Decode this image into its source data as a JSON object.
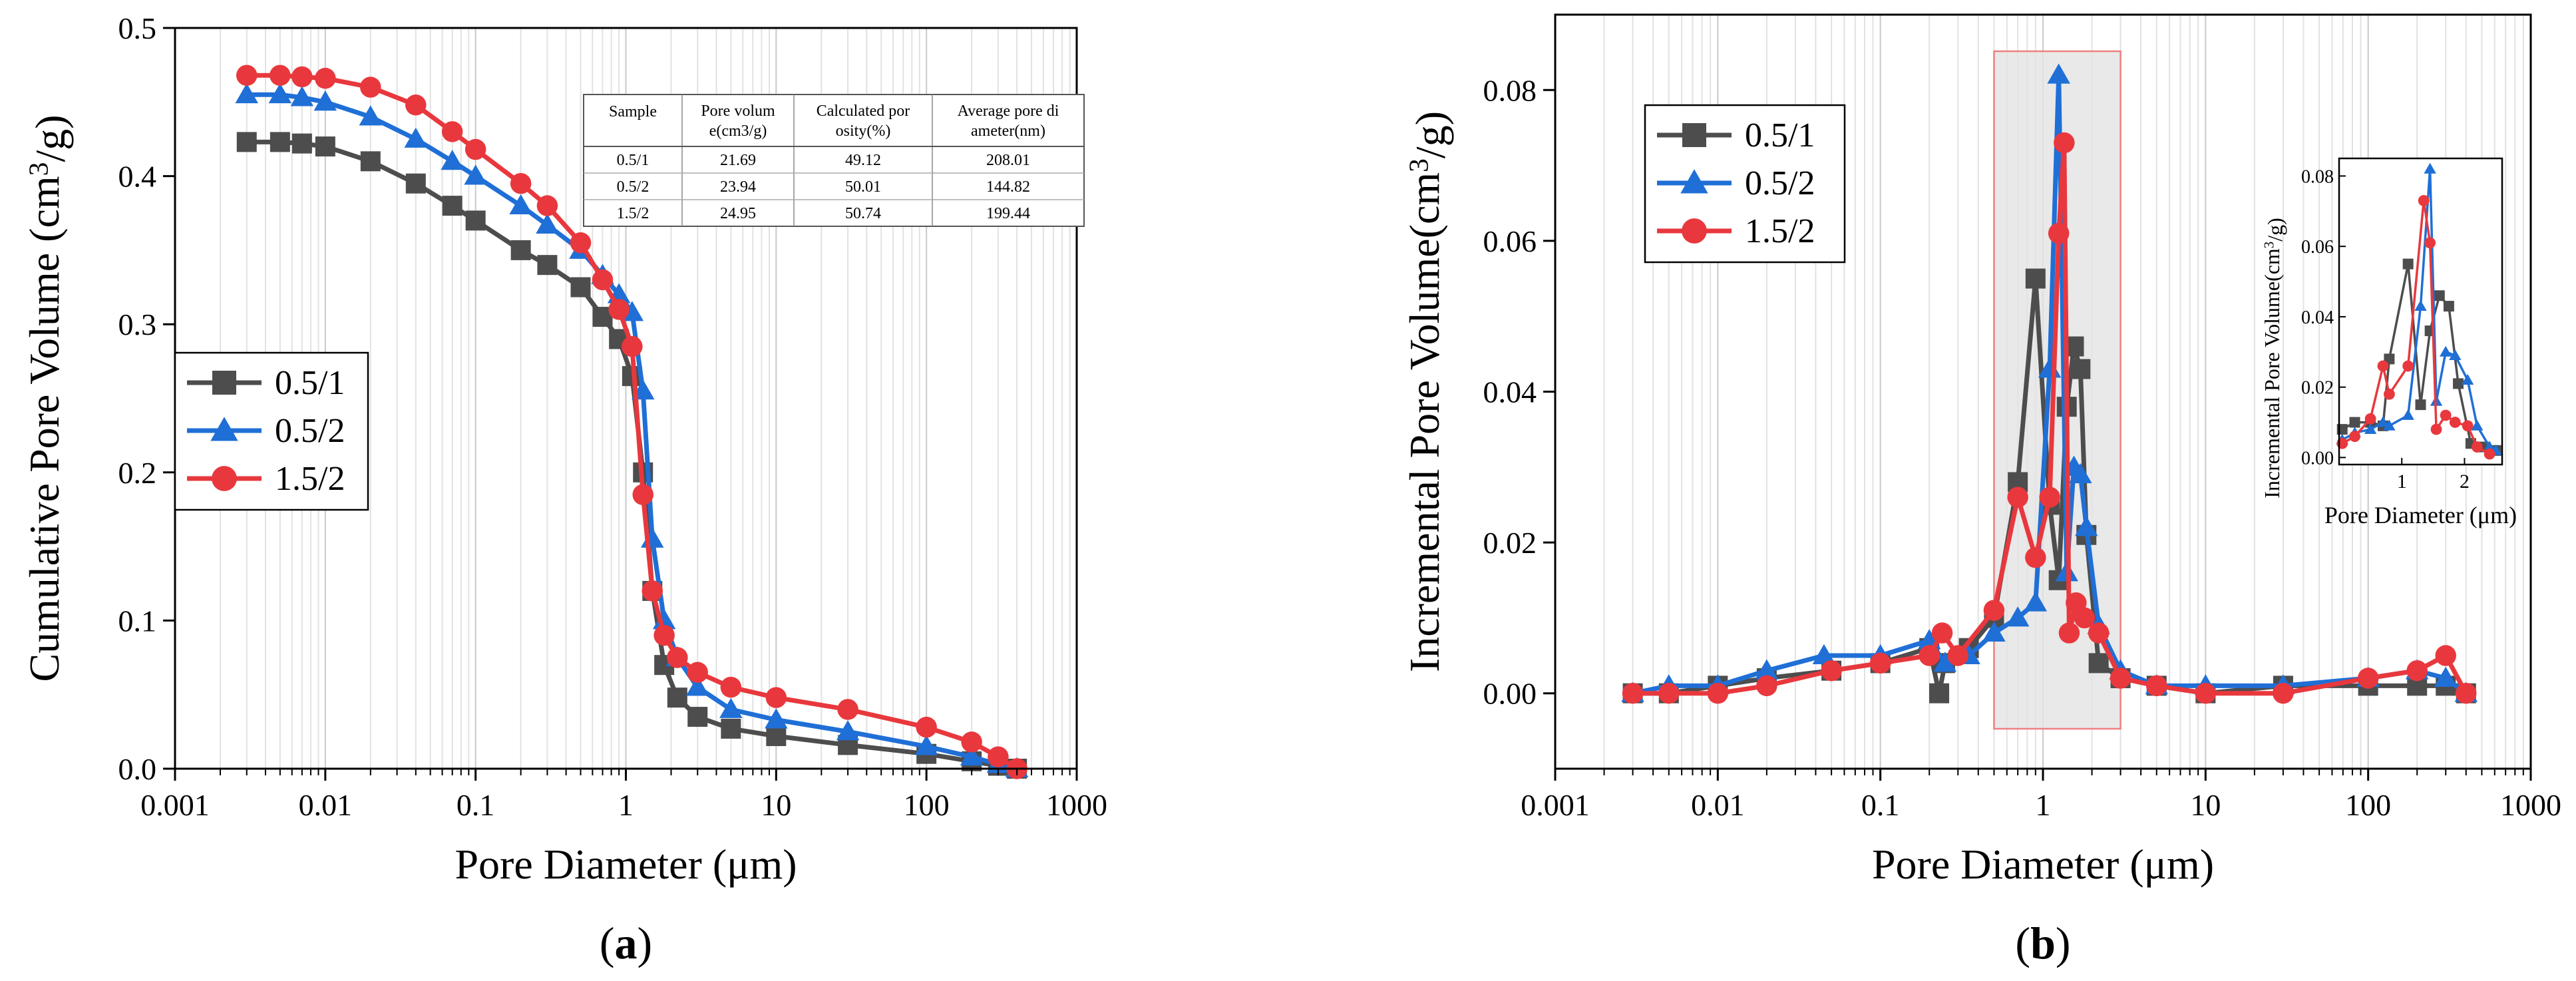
{
  "colors": {
    "s1": "#4d4d4d",
    "s2": "#1f6fd6",
    "s3": "#e8383d",
    "highlight_fill": "#e4e4e4",
    "highlight_edge": "#f08080"
  },
  "chart_data": [
    {
      "id": "a",
      "type": "line",
      "panel_label": "a",
      "xscale": "log",
      "xlim": [
        0.001,
        1000
      ],
      "ylim": [
        0,
        0.5
      ],
      "xticks": [
        {
          "v": 0.001,
          "label": "0.001"
        },
        {
          "v": 0.01,
          "label": "0.01"
        },
        {
          "v": 0.1,
          "label": "0.1"
        },
        {
          "v": 1,
          "label": "1"
        },
        {
          "v": 10,
          "label": "10"
        },
        {
          "v": 100,
          "label": "100"
        },
        {
          "v": 1000,
          "label": "1000"
        }
      ],
      "yticks": [
        {
          "v": 0.0,
          "label": "0.0"
        },
        {
          "v": 0.1,
          "label": "0.1"
        },
        {
          "v": 0.2,
          "label": "0.2"
        },
        {
          "v": 0.3,
          "label": "0.3"
        },
        {
          "v": 0.4,
          "label": "0.4"
        },
        {
          "v": 0.5,
          "label": "0.5"
        }
      ],
      "xlabel": "Pore Diameter (μm)",
      "ylabel": "Cumulative Pore Volume  (cm³/g)",
      "grid": "vertical log minor",
      "legend_position": "middle-left",
      "series": [
        {
          "name": "0.5/1",
          "marker": "square",
          "x": [
            0.003,
            0.005,
            0.007,
            0.01,
            0.02,
            0.04,
            0.07,
            0.1,
            0.2,
            0.3,
            0.5,
            0.7,
            0.9,
            1.1,
            1.3,
            1.5,
            1.8,
            2.2,
            3,
            5,
            10,
            30,
            100,
            200,
            300,
            400
          ],
          "y": [
            0.423,
            0.423,
            0.422,
            0.42,
            0.41,
            0.395,
            0.38,
            0.37,
            0.35,
            0.34,
            0.325,
            0.305,
            0.29,
            0.265,
            0.2,
            0.12,
            0.07,
            0.048,
            0.035,
            0.027,
            0.022,
            0.016,
            0.01,
            0.005,
            0.002,
            0.0
          ]
        },
        {
          "name": "0.5/2",
          "marker": "triangle",
          "x": [
            0.003,
            0.005,
            0.007,
            0.01,
            0.02,
            0.04,
            0.07,
            0.1,
            0.2,
            0.3,
            0.5,
            0.7,
            0.9,
            1.1,
            1.3,
            1.5,
            1.8,
            2.2,
            3,
            5,
            10,
            30,
            100,
            200,
            300,
            400
          ],
          "y": [
            0.455,
            0.455,
            0.453,
            0.45,
            0.44,
            0.425,
            0.41,
            0.4,
            0.38,
            0.367,
            0.35,
            0.333,
            0.32,
            0.308,
            0.255,
            0.155,
            0.1,
            0.075,
            0.055,
            0.04,
            0.033,
            0.025,
            0.015,
            0.008,
            0.003,
            0.0
          ]
        },
        {
          "name": "1.5/2",
          "marker": "circle",
          "x": [
            0.003,
            0.005,
            0.007,
            0.01,
            0.02,
            0.04,
            0.07,
            0.1,
            0.2,
            0.3,
            0.5,
            0.7,
            0.9,
            1.1,
            1.3,
            1.5,
            1.8,
            2.2,
            3,
            5,
            10,
            30,
            100,
            200,
            300,
            400
          ],
          "y": [
            0.468,
            0.468,
            0.467,
            0.466,
            0.46,
            0.448,
            0.43,
            0.418,
            0.395,
            0.38,
            0.355,
            0.33,
            0.31,
            0.285,
            0.185,
            0.12,
            0.09,
            0.075,
            0.065,
            0.055,
            0.048,
            0.04,
            0.028,
            0.018,
            0.008,
            0.0
          ]
        }
      ],
      "inset_table": {
        "headers": [
          "Sample",
          "Pore volum e(cm3/g)",
          "Calculated por osity(%)",
          "Average pore di ameter(nm)"
        ],
        "rows": [
          [
            "0.5/1",
            "21.69",
            "49.12",
            "208.01"
          ],
          [
            "0.5/2",
            "23.94",
            "50.01",
            "144.82"
          ],
          [
            "1.5/2",
            "24.95",
            "50.74",
            "199.44"
          ]
        ]
      }
    },
    {
      "id": "b",
      "type": "line",
      "panel_label": "b",
      "xscale": "log",
      "xlim": [
        0.001,
        1000
      ],
      "ylim": [
        -0.01,
        0.09
      ],
      "xticks": [
        {
          "v": 0.001,
          "label": "0.001"
        },
        {
          "v": 0.01,
          "label": "0.01"
        },
        {
          "v": 0.1,
          "label": "0.1"
        },
        {
          "v": 1,
          "label": "1"
        },
        {
          "v": 10,
          "label": "10"
        },
        {
          "v": 100,
          "label": "100"
        },
        {
          "v": 1000,
          "label": "1000"
        }
      ],
      "yticks": [
        {
          "v": 0.0,
          "label": "0.00"
        },
        {
          "v": 0.02,
          "label": "0.02"
        },
        {
          "v": 0.04,
          "label": "0.04"
        },
        {
          "v": 0.06,
          "label": "0.06"
        },
        {
          "v": 0.08,
          "label": "0.08"
        }
      ],
      "xlabel": "Pore Diameter (μm)",
      "ylabel": "Incremental Pore Volume(cm³/g)",
      "grid": "vertical log minor",
      "legend_position": "top-left",
      "highlight_range": [
        0.5,
        3.0
      ],
      "series": [
        {
          "name": "0.5/1",
          "marker": "square",
          "x": [
            0.003,
            0.005,
            0.01,
            0.02,
            0.05,
            0.1,
            0.2,
            0.23,
            0.25,
            0.35,
            0.5,
            0.7,
            0.9,
            1.1,
            1.25,
            1.4,
            1.55,
            1.7,
            1.85,
            2.2,
            3,
            5,
            10,
            30,
            100,
            200,
            300,
            400
          ],
          "y": [
            0.0,
            0.0,
            0.001,
            0.002,
            0.003,
            0.004,
            0.006,
            0.0,
            0.004,
            0.006,
            0.01,
            0.028,
            0.055,
            0.025,
            0.015,
            0.038,
            0.046,
            0.043,
            0.021,
            0.004,
            0.002,
            0.001,
            0.0,
            0.001,
            0.001,
            0.001,
            0.001,
            0.0
          ]
        },
        {
          "name": "0.5/2",
          "marker": "triangle",
          "x": [
            0.003,
            0.005,
            0.01,
            0.02,
            0.045,
            0.1,
            0.2,
            0.25,
            0.35,
            0.5,
            0.7,
            0.9,
            1.1,
            1.25,
            1.4,
            1.55,
            1.7,
            1.85,
            2.2,
            3,
            5,
            10,
            30,
            100,
            200,
            300,
            400
          ],
          "y": [
            0.0,
            0.001,
            0.001,
            0.003,
            0.005,
            0.005,
            0.007,
            0.004,
            0.005,
            0.008,
            0.01,
            0.012,
            0.043,
            0.082,
            0.016,
            0.03,
            0.029,
            0.022,
            0.009,
            0.003,
            0.001,
            0.001,
            0.001,
            0.002,
            0.003,
            0.002,
            0.0
          ]
        },
        {
          "name": "1.5/2",
          "marker": "circle",
          "x": [
            0.003,
            0.005,
            0.01,
            0.02,
            0.05,
            0.1,
            0.2,
            0.24,
            0.3,
            0.5,
            0.7,
            0.9,
            1.1,
            1.25,
            1.35,
            1.45,
            1.6,
            1.8,
            2.2,
            3,
            5,
            10,
            30,
            100,
            200,
            300,
            400
          ],
          "y": [
            0.0,
            0.0,
            0.0,
            0.001,
            0.003,
            0.004,
            0.005,
            0.008,
            0.005,
            0.011,
            0.026,
            0.018,
            0.026,
            0.061,
            0.073,
            0.008,
            0.012,
            0.01,
            0.008,
            0.002,
            0.001,
            0.0,
            0.0,
            0.002,
            0.003,
            0.005,
            0.0
          ]
        }
      ],
      "inset": {
        "xlim": [
          0,
          2.6
        ],
        "ylim": [
          -0.002,
          0.085
        ],
        "xticks": [
          {
            "v": 1,
            "label": "1"
          },
          {
            "v": 2,
            "label": "2"
          }
        ],
        "yticks": [
          {
            "v": 0.0,
            "label": "0.00"
          },
          {
            "v": 0.02,
            "label": "0.02"
          },
          {
            "v": 0.04,
            "label": "0.04"
          },
          {
            "v": 0.06,
            "label": "0.06"
          },
          {
            "v": 0.08,
            "label": "0.08"
          }
        ],
        "xlabel": "Pore Diameter (μm)",
        "ylabel": "Incremental Pore Volume(cm³/g)",
        "series": [
          {
            "name": "0.5/1",
            "x": [
              0.05,
              0.25,
              0.5,
              0.7,
              0.8,
              1.1,
              1.3,
              1.45,
              1.6,
              1.75,
              1.9,
              2.1,
              2.3,
              2.5
            ],
            "y": [
              0.008,
              0.01,
              0.01,
              0.009,
              0.028,
              0.055,
              0.015,
              0.036,
              0.046,
              0.043,
              0.021,
              0.004,
              0.003,
              0.002
            ]
          },
          {
            "name": "0.5/2",
            "x": [
              0.05,
              0.25,
              0.5,
              0.7,
              0.8,
              1.1,
              1.3,
              1.45,
              1.55,
              1.7,
              1.85,
              2.05,
              2.2,
              2.4,
              2.5
            ],
            "y": [
              0.005,
              0.007,
              0.008,
              0.01,
              0.009,
              0.012,
              0.043,
              0.082,
              0.016,
              0.03,
              0.029,
              0.022,
              0.009,
              0.003,
              0.002
            ]
          },
          {
            "name": "1.5/2",
            "x": [
              0.05,
              0.25,
              0.5,
              0.7,
              0.8,
              1.1,
              1.35,
              1.45,
              1.55,
              1.7,
              1.85,
              2.05,
              2.2,
              2.4
            ],
            "y": [
              0.004,
              0.006,
              0.011,
              0.026,
              0.018,
              0.026,
              0.073,
              0.061,
              0.008,
              0.012,
              0.01,
              0.009,
              0.003,
              0.001
            ]
          }
        ]
      }
    }
  ]
}
